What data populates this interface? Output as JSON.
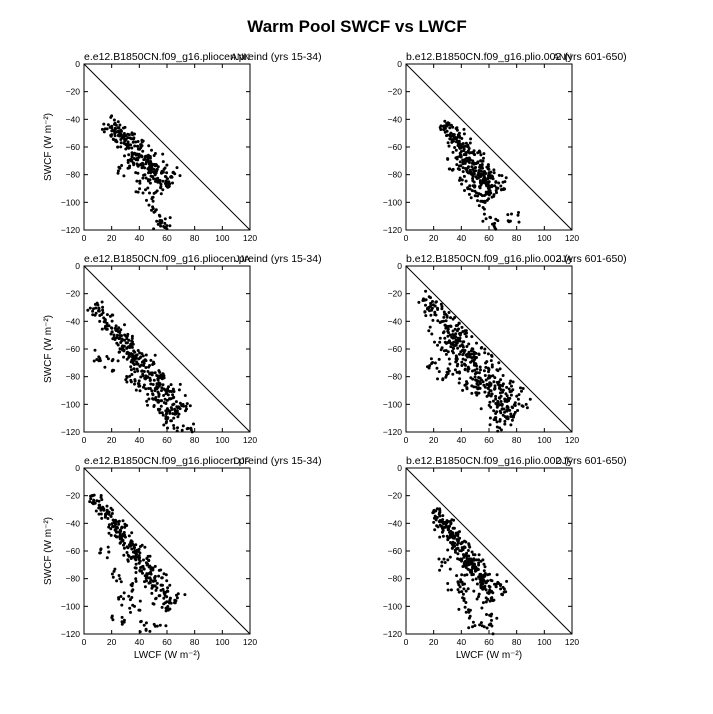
{
  "title": "Warm Pool SWCF vs LWCF",
  "chart_data": [
    {
      "type": "scatter",
      "title": "e.e12.B1850CN.f09_g16.pliocen.preind (yrs 15-34)",
      "season": "ANN",
      "ylabel": "SWCF (W m⁻²)",
      "xlabel": "",
      "xlim": [
        0,
        120
      ],
      "ylim": [
        -120,
        0
      ],
      "reference_line": "1:1",
      "xticks": [
        "0",
        "20",
        "40",
        "60",
        "80",
        "100",
        "120"
      ],
      "yticks": [
        "0",
        "−20",
        "−40",
        "−60",
        "−80",
        "−100",
        "−120"
      ],
      "cloud": {
        "lx": [
          16,
          62
        ],
        "ly": [
          -41,
          -88
        ],
        "width": 10,
        "scatter": [
          [
            28,
            -78
          ],
          [
            42,
            -88
          ],
          [
            52,
            -105
          ],
          [
            58,
            -112
          ],
          [
            46,
            -95
          ],
          [
            36,
            -70
          ],
          [
            60,
            -120
          ],
          [
            55,
            -115
          ]
        ],
        "count": 260
      }
    },
    {
      "type": "scatter",
      "title": "b.e12.B1850CN.f09_g16.plio.002 (yrs 601-650)",
      "season": "ANN",
      "ylabel": "",
      "xlabel": "",
      "xlim": [
        0,
        120
      ],
      "ylim": [
        -120,
        0
      ],
      "reference_line": "1:1",
      "xticks": [
        "0",
        "20",
        "40",
        "60",
        "80",
        "100",
        "120"
      ],
      "yticks": [
        "0",
        "−20",
        "−40",
        "−60",
        "−80",
        "−100",
        "−120"
      ],
      "cloud": {
        "lx": [
          27,
          65
        ],
        "ly": [
          -42,
          -95
        ],
        "width": 9,
        "scatter": [
          [
            35,
            -72
          ],
          [
            45,
            -88
          ],
          [
            55,
            -100
          ],
          [
            60,
            -112
          ],
          [
            63,
            -118
          ],
          [
            50,
            -95
          ],
          [
            40,
            -80
          ],
          [
            78,
            -112
          ]
        ],
        "count": 300
      }
    },
    {
      "type": "scatter",
      "title": "e.e12.B1850CN.f09_g16.pliocen.preind (yrs 15-34)",
      "season": "JJA",
      "ylabel": "SWCF (W m⁻²)",
      "xlabel": "",
      "xlim": [
        0,
        120
      ],
      "ylim": [
        -120,
        0
      ],
      "reference_line": "1:1",
      "xticks": [
        "0",
        "20",
        "40",
        "60",
        "80",
        "100",
        "120"
      ],
      "yticks": [
        "0",
        "−20",
        "−40",
        "−60",
        "−80",
        "−100",
        "−120"
      ],
      "cloud": {
        "lx": [
          7,
          70
        ],
        "ly": [
          -28,
          -108
        ],
        "width": 10,
        "scatter": [
          [
            12,
            -65
          ],
          [
            20,
            -72
          ],
          [
            30,
            -80
          ],
          [
            40,
            -85
          ],
          [
            50,
            -100
          ],
          [
            58,
            -110
          ],
          [
            65,
            -118
          ],
          [
            75,
            -115
          ]
        ],
        "count": 320
      }
    },
    {
      "type": "scatter",
      "title": "b.e12.B1850CN.f09_g16.plio.002 (yrs 601-650)",
      "season": "JJA",
      "ylabel": "",
      "xlabel": "",
      "xlim": [
        0,
        120
      ],
      "ylim": [
        -120,
        0
      ],
      "reference_line": "1:1",
      "xticks": [
        "0",
        "20",
        "40",
        "60",
        "80",
        "100",
        "120"
      ],
      "yticks": [
        "0",
        "−20",
        "−40",
        "−60",
        "−80",
        "−100",
        "−120"
      ],
      "cloud": {
        "lx": [
          13,
          80
        ],
        "ly": [
          -23,
          -112
        ],
        "width": 14,
        "scatter": [
          [
            20,
            -70
          ],
          [
            25,
            -78
          ],
          [
            30,
            -58
          ],
          [
            35,
            -75
          ],
          [
            40,
            -85
          ],
          [
            45,
            -65
          ],
          [
            55,
            -90
          ],
          [
            70,
            -100
          ]
        ],
        "count": 380
      }
    },
    {
      "type": "scatter",
      "title": "e.e12.B1850CN.f09_g16.pliocen.preind (yrs 15-34)",
      "season": "DJF",
      "ylabel": "SWCF (W m⁻²)",
      "xlabel": "LWCF (W m⁻²)",
      "xlim": [
        0,
        120
      ],
      "ylim": [
        -120,
        0
      ],
      "reference_line": "1:1",
      "xticks": [
        "0",
        "20",
        "40",
        "60",
        "80",
        "100",
        "120"
      ],
      "yticks": [
        "0",
        "−20",
        "−40",
        "−60",
        "−80",
        "−100",
        "−120"
      ],
      "cloud": {
        "lx": [
          6,
          65
        ],
        "ly": [
          -19,
          -100
        ],
        "width": 8,
        "scatter": [
          [
            15,
            -60
          ],
          [
            22,
            -78
          ],
          [
            30,
            -95
          ],
          [
            25,
            -110
          ],
          [
            38,
            -100
          ],
          [
            45,
            -115
          ],
          [
            55,
            -118
          ],
          [
            35,
            -85
          ]
        ],
        "count": 280
      }
    },
    {
      "type": "scatter",
      "title": "b.e12.B1850CN.f09_g16.plio.002 (yrs 601-650)",
      "season": "DJF",
      "ylabel": "",
      "xlabel": "LWCF (W m⁻²)",
      "xlim": [
        0,
        120
      ],
      "ylim": [
        -120,
        0
      ],
      "reference_line": "1:1",
      "xticks": [
        "0",
        "20",
        "40",
        "60",
        "80",
        "100",
        "120"
      ],
      "yticks": [
        "0",
        "−20",
        "−40",
        "−60",
        "−80",
        "−100",
        "−120"
      ],
      "cloud": {
        "lx": [
          20,
          65
        ],
        "ly": [
          -30,
          -95
        ],
        "width": 9,
        "scatter": [
          [
            28,
            -70
          ],
          [
            35,
            -85
          ],
          [
            42,
            -100
          ],
          [
            50,
            -112
          ],
          [
            58,
            -118
          ],
          [
            62,
            -110
          ],
          [
            45,
            -90
          ],
          [
            38,
            -80
          ]
        ],
        "count": 300
      }
    }
  ]
}
